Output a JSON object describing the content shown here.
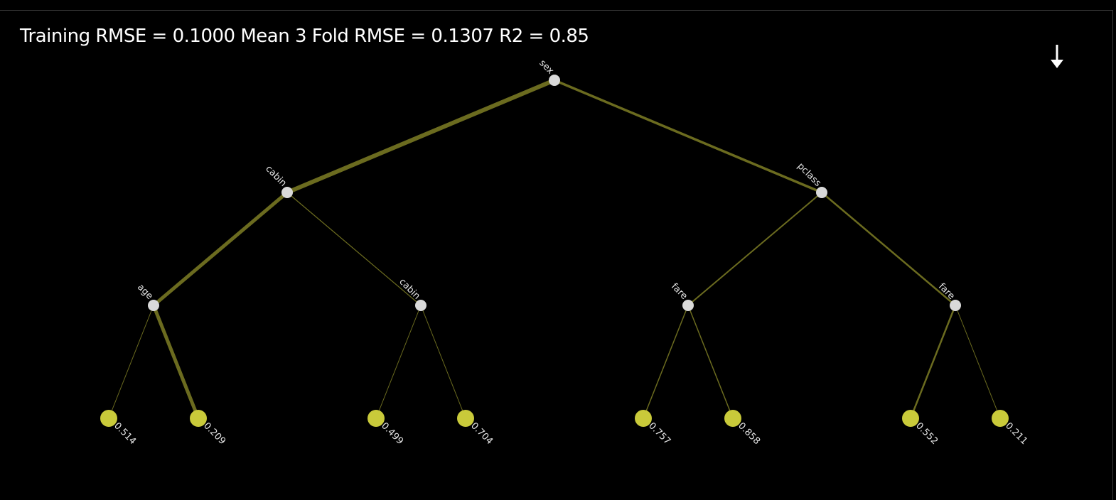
{
  "header": {
    "metrics_text": "Training RMSE = 0.1000 Mean 3 Fold RMSE = 0.1307 R2 = 0.85"
  },
  "toolbar": {
    "download_icon": "arrow-down-icon"
  },
  "colors": {
    "background": "#000000",
    "edge": "#6b6b1f",
    "leaf": "#c9ca3a",
    "split_node": "#d9d9d9",
    "text": "#ffffff"
  },
  "tree": {
    "splits": [
      {
        "id": "n0",
        "label": "sex"
      },
      {
        "id": "n1",
        "label": "cabin"
      },
      {
        "id": "n2",
        "label": "pclass"
      },
      {
        "id": "n3",
        "label": "age"
      },
      {
        "id": "n4",
        "label": "cabin"
      },
      {
        "id": "n5",
        "label": "fare"
      },
      {
        "id": "n6",
        "label": "fare"
      }
    ],
    "leaves": [
      {
        "id": "l0",
        "value": "0.514"
      },
      {
        "id": "l1",
        "value": "0.209"
      },
      {
        "id": "l2",
        "value": "0.499"
      },
      {
        "id": "l3",
        "value": "0.704"
      },
      {
        "id": "l4",
        "value": "0.757"
      },
      {
        "id": "l5",
        "value": "0.858"
      },
      {
        "id": "l6",
        "value": "0.552"
      },
      {
        "id": "l7",
        "value": "0.211"
      }
    ],
    "edges": [
      {
        "from": "n0",
        "to": "n1",
        "weight": 6
      },
      {
        "from": "n0",
        "to": "n2",
        "weight": 3.5
      },
      {
        "from": "n1",
        "to": "n3",
        "weight": 5
      },
      {
        "from": "n1",
        "to": "n4",
        "weight": 1.2
      },
      {
        "from": "n2",
        "to": "n5",
        "weight": 2
      },
      {
        "from": "n2",
        "to": "n6",
        "weight": 2.5
      },
      {
        "from": "n3",
        "to": "l0",
        "weight": 1
      },
      {
        "from": "n3",
        "to": "l1",
        "weight": 5
      },
      {
        "from": "n4",
        "to": "l2",
        "weight": 1
      },
      {
        "from": "n4",
        "to": "l3",
        "weight": 1
      },
      {
        "from": "n5",
        "to": "l4",
        "weight": 1.5
      },
      {
        "from": "n5",
        "to": "l5",
        "weight": 1.5
      },
      {
        "from": "n6",
        "to": "l6",
        "weight": 2.5
      },
      {
        "from": "n6",
        "to": "l7",
        "weight": 1
      }
    ]
  }
}
